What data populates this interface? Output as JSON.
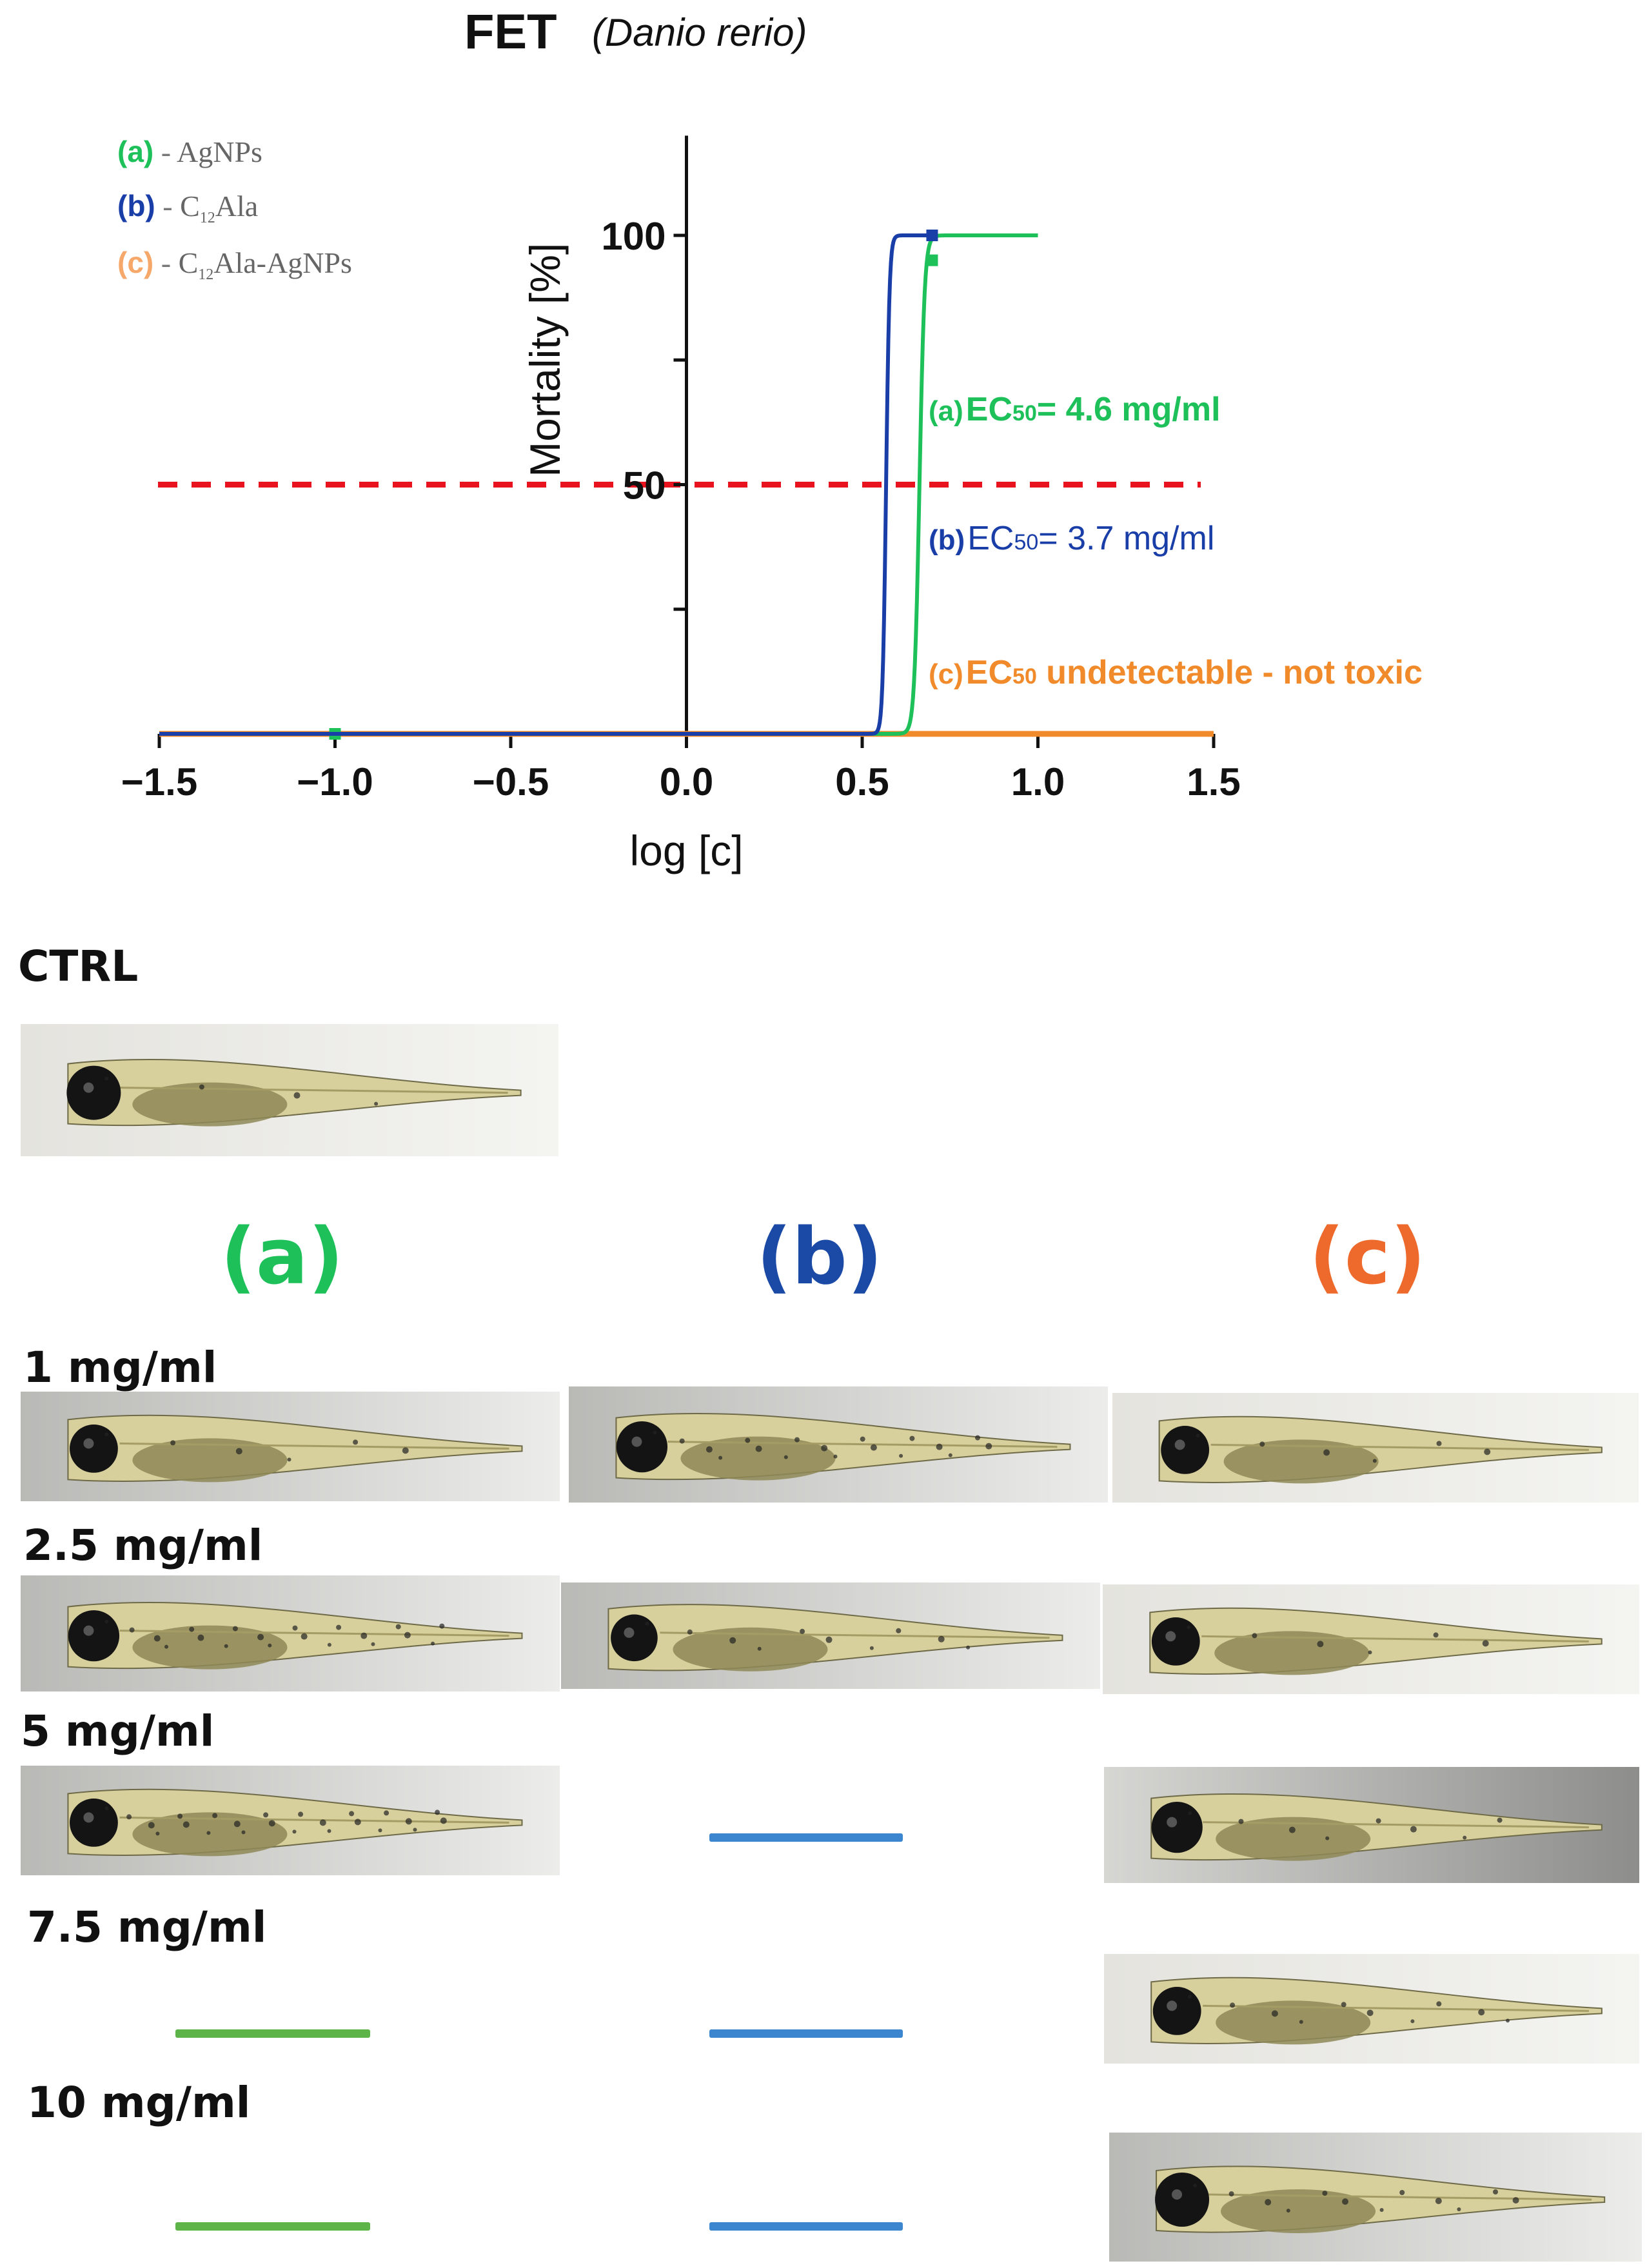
{
  "figure": {
    "title": "FET",
    "subtitle": "(Danio rerio)"
  },
  "legend": [
    {
      "tag": "(a)",
      "dash": " - ",
      "name": "AgNPs",
      "color": "#1ec05a"
    },
    {
      "tag": "(b)",
      "dash": " - ",
      "name": "C",
      "sub": "12",
      "name_rest": "Ala",
      "color": "#1a3ea8"
    },
    {
      "tag": "(c)",
      "dash": " - ",
      "name": "C",
      "sub": "12",
      "name_rest": "Ala-AgNPs",
      "color": "#f5a86a"
    }
  ],
  "chart_data": {
    "type": "line",
    "title": "FET",
    "xlabel": "log [c]",
    "ylabel": "Mortality [%]",
    "xlim": [
      -1.5,
      1.5
    ],
    "ylim": [
      0,
      120
    ],
    "xticks": [
      -1.5,
      -1.0,
      -0.5,
      0.0,
      0.5,
      1.0,
      1.5
    ],
    "xtick_labels": [
      "−1.5",
      "−1.0",
      "−0.5",
      "0.0",
      "0.5",
      "1.0",
      "1.5"
    ],
    "yticks": [
      0,
      25,
      50,
      75,
      100
    ],
    "ytick_labels": [
      "",
      "",
      "50",
      "",
      "100"
    ],
    "threshold": {
      "y": 50,
      "color": "#e8131e"
    },
    "series": [
      {
        "id": "a",
        "name": "(a)",
        "color": "#1ec05a",
        "model": {
          "bottom": 0,
          "top": 100,
          "log_ec50": 0.663,
          "hill": 60,
          "x_from": -1.5,
          "x_to": 1.0
        },
        "points": [
          {
            "x": -1.0,
            "y": 0
          },
          {
            "x": 0.699,
            "y": 95
          }
        ]
      },
      {
        "id": "b",
        "name": "(b)",
        "color": "#1a3ea8",
        "model": {
          "bottom": 0,
          "top": 100,
          "log_ec50": 0.568,
          "hill": 90,
          "x_from": -1.5,
          "x_to": 0.699
        },
        "points": [
          {
            "x": 0.699,
            "y": 100
          }
        ]
      },
      {
        "id": "c",
        "name": "(c)",
        "color": "#f08a2a",
        "model": {
          "bottom": 0,
          "top": 0,
          "log_ec50": 0,
          "hill": 1,
          "x_from": -1.5,
          "x_to": 1.5
        },
        "points": []
      }
    ],
    "annotations": [
      {
        "tag": "(a)",
        "text_pre": "EC",
        "sub": "50",
        "text_post": "= 4.6 mg/ml",
        "color": "#1ec05a",
        "weight": "bold"
      },
      {
        "tag": "(b)",
        "text_pre": "EC",
        "sub": "50",
        "text_post": "= 3.7 mg/ml",
        "color": "#1a3ea8",
        "weight": "normal"
      },
      {
        "tag": "(c)",
        "text_pre": "EC",
        "sub": "50",
        "text_post": " undetectable - not toxic",
        "color": "#f08a2a",
        "weight": "bold"
      }
    ]
  },
  "ctrl_label": "CTRL",
  "columns": [
    {
      "label": "(a)",
      "color": "#1ec05a"
    },
    {
      "label": "(b)",
      "color": "#1a4aa6"
    },
    {
      "label": "(c)",
      "color": "#ee6a2c"
    }
  ],
  "concentrations": [
    "1 mg/ml",
    "2.5 mg/ml",
    "5 mg/ml",
    "7.5 mg/ml",
    "10 mg/ml"
  ],
  "dead_bar_colors": {
    "a": "#5db54a",
    "b": "#3c86cf"
  }
}
